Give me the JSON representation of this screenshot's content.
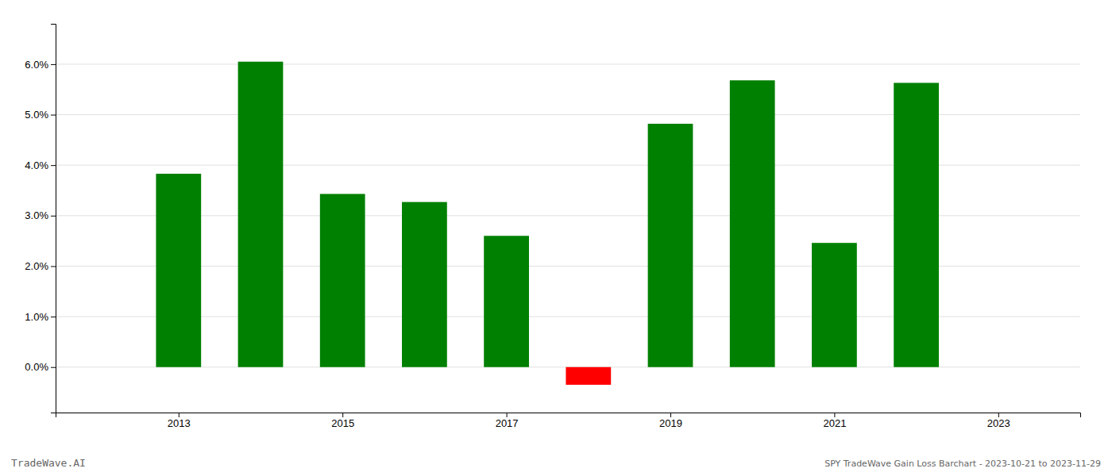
{
  "chart_data": {
    "type": "bar",
    "x": [
      2013,
      2014,
      2015,
      2016,
      2017,
      2018,
      2019,
      2020,
      2021,
      2022
    ],
    "values": [
      0.0383,
      0.0605,
      0.0343,
      0.0327,
      0.026,
      -0.0035,
      0.0482,
      0.0568,
      0.0246,
      0.0563
    ],
    "colors": [
      "#008000",
      "#008000",
      "#008000",
      "#008000",
      "#008000",
      "#ff0000",
      "#008000",
      "#008000",
      "#008000",
      "#008000"
    ],
    "xlim": [
      2011.5,
      2024.0
    ],
    "xticks": [
      2013,
      2015,
      2017,
      2019,
      2021,
      2023
    ],
    "ylim": [
      -0.009,
      0.068
    ],
    "yticks": [
      {
        "value": 0.0,
        "label": "0.0%"
      },
      {
        "value": 0.01,
        "label": "1.0%"
      },
      {
        "value": 0.02,
        "label": "2.0%"
      },
      {
        "value": 0.03,
        "label": "3.0%"
      },
      {
        "value": 0.04,
        "label": "4.0%"
      },
      {
        "value": 0.05,
        "label": "5.0%"
      },
      {
        "value": 0.06,
        "label": "6.0%"
      }
    ],
    "grid": true,
    "annotations": [
      "TradeWave.AI",
      "SPY TradeWave Gain Loss Barchart - 2023-10-21 to 2023-11-29"
    ]
  }
}
